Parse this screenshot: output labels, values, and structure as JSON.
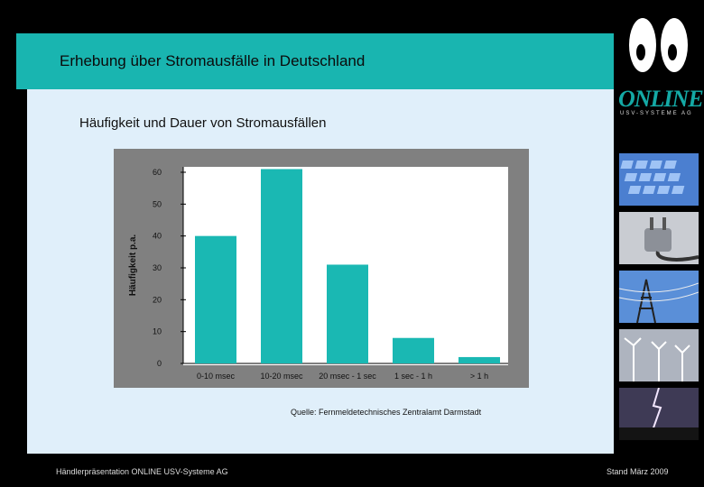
{
  "slide": {
    "title": "Erhebung über Stromausfälle in Deutschland",
    "subtitle": "Häufigkeit und Dauer von Stromausfällen",
    "source": "Quelle: Fernmeldetechnisches Zentralamt Darmstadt",
    "footer_left": "Händlerpräsentation ONLINE USV-Systeme AG",
    "footer_right": "Stand März 2009"
  },
  "logo": {
    "word": "ONLINE",
    "sub": "USV-SYSTEME AG",
    "brand_color": "#14a9a5"
  },
  "icons": [
    "keyboard-photo",
    "power-plug-photo",
    "power-lines-photo",
    "wind-turbines-photo",
    "lightning-photo"
  ],
  "chart_data": {
    "type": "bar",
    "categories": [
      "0-10 msec",
      "10-20 msec",
      "20 msec - 1 sec",
      "1 sec - 1 h",
      "> 1 h"
    ],
    "values": [
      40,
      61,
      31,
      8,
      2
    ],
    "title": "",
    "xlabel": "",
    "ylabel": "Häufigkeit p.a.",
    "ylim": [
      0,
      60
    ],
    "yticks": [
      "0",
      "10",
      "20",
      "30",
      "40",
      "50",
      "60"
    ],
    "bar_color": "#1ab8b3",
    "grid": false
  }
}
